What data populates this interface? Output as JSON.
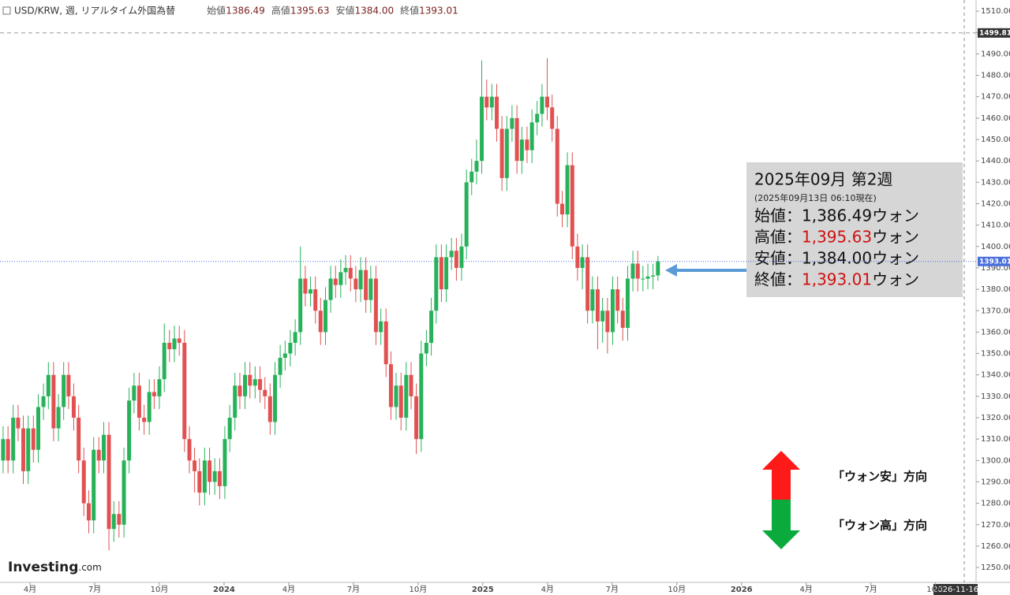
{
  "chart_data": {
    "type": "candlestick",
    "header": {
      "symbol": "USD/KRW, 週, リアルタイム外国為替",
      "fields": [
        {
          "label": "始値",
          "value": "1386.49"
        },
        {
          "label": "高値",
          "value": "1395.63"
        },
        {
          "label": "安値",
          "value": "1384.00"
        },
        {
          "label": "終値",
          "value": "1393.01"
        }
      ]
    },
    "up_color": "#27b25a",
    "down_color": "#e25151",
    "x": [
      2023.146,
      2023.165,
      2023.185,
      2023.204,
      2023.224,
      2023.243,
      2023.263,
      2023.282,
      2023.302,
      2023.321,
      2023.341,
      2023.36,
      2023.38,
      2023.399,
      2023.419,
      2023.438,
      2023.458,
      2023.477,
      2023.496,
      2023.516,
      2023.535,
      2023.555,
      2023.574,
      2023.594,
      2023.613,
      2023.633,
      2023.652,
      2023.672,
      2023.691,
      2023.711,
      2023.73,
      2023.75,
      2023.769,
      2023.789,
      2023.808,
      2023.827,
      2023.847,
      2023.866,
      2023.886,
      2023.905,
      2023.925,
      2023.944,
      2023.964,
      2023.983,
      2024.003,
      2024.022,
      2024.042,
      2024.061,
      2024.081,
      2024.1,
      2024.12,
      2024.139,
      2024.158,
      2024.178,
      2024.197,
      2024.217,
      2024.236,
      2024.256,
      2024.275,
      2024.295,
      2024.314,
      2024.334,
      2024.353,
      2024.373,
      2024.392,
      2024.412,
      2024.431,
      2024.451,
      2024.47,
      2024.489,
      2024.509,
      2024.528,
      2024.548,
      2024.567,
      2024.587,
      2024.606,
      2024.626,
      2024.645,
      2024.665,
      2024.684,
      2024.704,
      2024.723,
      2024.743,
      2024.762,
      2024.782,
      2024.801,
      2024.82,
      2024.84,
      2024.859,
      2024.879,
      2024.898,
      2024.918,
      2024.937,
      2024.957,
      2024.976,
      2024.996,
      2025.015,
      2025.035,
      2025.054,
      2025.074,
      2025.093,
      2025.113,
      2025.132,
      2025.151,
      2025.171,
      2025.19,
      2025.21,
      2025.229,
      2025.249,
      2025.268,
      2025.288,
      2025.307,
      2025.327,
      2025.346,
      2025.366,
      2025.385,
      2025.405,
      2025.424,
      2025.444,
      2025.463,
      2025.482,
      2025.502,
      2025.521,
      2025.541,
      2025.56,
      2025.58,
      2025.599,
      2025.619,
      2025.638,
      2025.658,
      2025.677
    ],
    "open": [
      1300,
      1310,
      1300,
      1320,
      1315,
      1295,
      1315,
      1305,
      1325,
      1330,
      1340,
      1315,
      1325,
      1340,
      1330,
      1320,
      1300,
      1280,
      1272,
      1305,
      1300,
      1312,
      1268,
      1275,
      1270,
      1300,
      1328,
      1335,
      1320,
      1318,
      1332,
      1330,
      1338,
      1355,
      1352,
      1357,
      1355,
      1310,
      1300,
      1295,
      1285,
      1300,
      1290,
      1295,
      1288,
      1310,
      1320,
      1335,
      1330,
      1340,
      1335,
      1338,
      1333,
      1330,
      1318,
      1340,
      1348,
      1350,
      1355,
      1360,
      1385,
      1378,
      1380,
      1370,
      1360,
      1375,
      1385,
      1382,
      1388,
      1390,
      1385,
      1380,
      1389,
      1375,
      1385,
      1360,
      1365,
      1345,
      1325,
      1335,
      1320,
      1340,
      1330,
      1310,
      1350,
      1355,
      1370,
      1395,
      1380,
      1395,
      1398,
      1390,
      1400,
      1430,
      1435,
      1440,
      1470,
      1465,
      1470,
      1455,
      1432,
      1455,
      1460,
      1440,
      1450,
      1445,
      1458,
      1462,
      1470,
      1465,
      1455,
      1420,
      1415,
      1438,
      1400,
      1390,
      1395,
      1370,
      1380,
      1365,
      1370,
      1360,
      1380,
      1370,
      1362,
      1385,
      1392,
      1385,
      1385,
      1386,
      1386.49
    ],
    "high": [
      1316,
      1316,
      1326,
      1326,
      1321,
      1321,
      1321,
      1331,
      1336,
      1346,
      1346,
      1331,
      1346,
      1346,
      1336,
      1326,
      1306,
      1286,
      1311,
      1311,
      1318,
      1318,
      1281,
      1281,
      1306,
      1334,
      1341,
      1341,
      1326,
      1338,
      1338,
      1344,
      1364,
      1361,
      1363,
      1363,
      1361,
      1316,
      1306,
      1301,
      1306,
      1306,
      1301,
      1301,
      1316,
      1326,
      1341,
      1341,
      1346,
      1346,
      1344,
      1344,
      1339,
      1336,
      1346,
      1354,
      1356,
      1361,
      1366,
      1400,
      1391,
      1386,
      1386,
      1376,
      1381,
      1391,
      1391,
      1394,
      1396,
      1396,
      1391,
      1395,
      1395,
      1391,
      1391,
      1371,
      1371,
      1351,
      1341,
      1341,
      1346,
      1346,
      1336,
      1356,
      1361,
      1376,
      1401,
      1401,
      1401,
      1404,
      1404,
      1406,
      1436,
      1441,
      1450,
      1487,
      1478,
      1476,
      1476,
      1461,
      1461,
      1466,
      1466,
      1456,
      1456,
      1464,
      1468,
      1476,
      1488,
      1471,
      1461,
      1426,
      1444,
      1444,
      1406,
      1401,
      1401,
      1386,
      1386,
      1376,
      1376,
      1386,
      1386,
      1376,
      1391,
      1398,
      1398,
      1391,
      1392,
      1392,
      1395.63
    ],
    "low": [
      1294,
      1294,
      1294,
      1309,
      1289,
      1289,
      1299,
      1299,
      1319,
      1324,
      1309,
      1309,
      1319,
      1324,
      1314,
      1294,
      1274,
      1266,
      1266,
      1294,
      1294,
      1258,
      1262,
      1264,
      1264,
      1294,
      1322,
      1314,
      1312,
      1312,
      1324,
      1324,
      1332,
      1346,
      1346,
      1349,
      1304,
      1294,
      1285,
      1279,
      1279,
      1284,
      1284,
      1282,
      1282,
      1304,
      1314,
      1324,
      1324,
      1329,
      1329,
      1327,
      1324,
      1312,
      1312,
      1334,
      1342,
      1344,
      1349,
      1354,
      1372,
      1372,
      1364,
      1354,
      1354,
      1369,
      1376,
      1376,
      1382,
      1379,
      1374,
      1374,
      1369,
      1369,
      1354,
      1354,
      1339,
      1319,
      1319,
      1314,
      1314,
      1324,
      1303,
      1304,
      1344,
      1349,
      1364,
      1374,
      1374,
      1389,
      1384,
      1384,
      1394,
      1424,
      1429,
      1434,
      1459,
      1459,
      1449,
      1426,
      1426,
      1449,
      1434,
      1434,
      1439,
      1439,
      1452,
      1456,
      1459,
      1449,
      1414,
      1409,
      1409,
      1394,
      1384,
      1380,
      1364,
      1364,
      1352,
      1355,
      1350,
      1354,
      1364,
      1356,
      1356,
      1379,
      1379,
      1379,
      1380,
      1380,
      1384.0
    ],
    "close": [
      1310,
      1300,
      1320,
      1315,
      1295,
      1315,
      1305,
      1325,
      1330,
      1340,
      1315,
      1325,
      1340,
      1330,
      1320,
      1300,
      1280,
      1272,
      1305,
      1300,
      1312,
      1268,
      1275,
      1270,
      1300,
      1328,
      1335,
      1320,
      1318,
      1332,
      1330,
      1338,
      1355,
      1352,
      1357,
      1355,
      1310,
      1300,
      1295,
      1285,
      1300,
      1290,
      1295,
      1288,
      1310,
      1320,
      1335,
      1330,
      1340,
      1335,
      1338,
      1333,
      1330,
      1318,
      1340,
      1348,
      1350,
      1355,
      1360,
      1385,
      1378,
      1380,
      1370,
      1360,
      1375,
      1385,
      1382,
      1388,
      1390,
      1385,
      1380,
      1389,
      1375,
      1385,
      1360,
      1365,
      1345,
      1325,
      1335,
      1320,
      1340,
      1330,
      1310,
      1350,
      1355,
      1370,
      1395,
      1380,
      1395,
      1398,
      1390,
      1400,
      1430,
      1435,
      1440,
      1470,
      1465,
      1470,
      1455,
      1432,
      1455,
      1460,
      1440,
      1450,
      1445,
      1458,
      1462,
      1470,
      1465,
      1455,
      1420,
      1415,
      1438,
      1400,
      1390,
      1395,
      1370,
      1380,
      1365,
      1370,
      1360,
      1380,
      1370,
      1362,
      1385,
      1392,
      1385,
      1385,
      1386,
      1386.49,
      1393.01
    ],
    "xlim": [
      2023.134,
      2026.87
    ],
    "xticks": [
      {
        "value": 2023.25,
        "label": "4月"
      },
      {
        "value": 2023.5,
        "label": "7月"
      },
      {
        "value": 2023.75,
        "label": "10月"
      },
      2024,
      {
        "value": 2024.25,
        "label": "4月"
      },
      {
        "value": 2024.5,
        "label": "7月"
      },
      {
        "value": 2024.75,
        "label": "10月"
      },
      2025,
      {
        "value": 2025.25,
        "label": "4月"
      },
      {
        "value": 2025.5,
        "label": "7月"
      },
      {
        "value": 2025.75,
        "label": "10月"
      },
      2026,
      {
        "value": 2026.25,
        "label": "4月"
      },
      {
        "value": 2026.5,
        "label": "7月"
      },
      {
        "value": 2026.75,
        "label": "10月"
      }
    ],
    "ylim": [
      1243.4,
      1515.2
    ],
    "yticks": [
      {
        "value": 1250,
        "label": "1250.00"
      },
      {
        "value": 1260,
        "label": "1260.00"
      },
      {
        "value": 1270,
        "label": "1270.00"
      },
      {
        "value": 1280,
        "label": "1280.00"
      },
      {
        "value": 1290,
        "label": "1290.00"
      },
      {
        "value": 1300,
        "label": "1300.00"
      },
      {
        "value": 1310,
        "label": "1310.00"
      },
      {
        "value": 1320,
        "label": "1320.00"
      },
      {
        "value": 1330,
        "label": "1330.00"
      },
      {
        "value": 1340,
        "label": "1340.00"
      },
      {
        "value": 1350,
        "label": "1350.00"
      },
      {
        "value": 1360,
        "label": "1360.00"
      },
      {
        "value": 1370,
        "label": "1370.00"
      },
      {
        "value": 1380,
        "label": "1380.00"
      },
      {
        "value": 1390,
        "label": "1390.00"
      },
      {
        "value": 1400,
        "label": "1400.00"
      },
      {
        "value": 1410,
        "label": "1410.00"
      },
      {
        "value": 1420,
        "label": "1420.00"
      },
      {
        "value": 1430,
        "label": "1430.00"
      },
      {
        "value": 1440,
        "label": "1440.00"
      },
      {
        "value": 1450,
        "label": "1450.00"
      },
      {
        "value": 1460,
        "label": "1460.00"
      },
      {
        "value": 1470,
        "label": "1470.00"
      },
      {
        "value": 1480,
        "label": "1480.00"
      },
      {
        "value": 1490,
        "label": "1490.00"
      },
      {
        "value": 1500,
        "label": "1500.00"
      },
      {
        "value": 1510,
        "label": "1510.00"
      }
    ],
    "reference_lines": [
      {
        "value": 1499.81,
        "color": "#999999",
        "style": "dashed"
      },
      {
        "value": 1393.01,
        "color": "#4a6fdc",
        "style": "dotted"
      }
    ],
    "cursor_label": "2026-11-16",
    "info_box": {
      "title": "2025年09月 第2週",
      "subtitle": "(2025年09月13日 06:10現在)",
      "rows": [
        {
          "label": "始値：",
          "value": "1,386.49",
          "unit": "ウォン",
          "color": "#111111"
        },
        {
          "label": "高値：",
          "value": "1,395.63",
          "unit": "ウォン",
          "color": "#d01010"
        },
        {
          "label": "安値：",
          "value": "1,384.00",
          "unit": "ウォン",
          "color": "#111111"
        },
        {
          "label": "終値：",
          "value": "1,393.01",
          "unit": "ウォン",
          "color": "#d01010"
        }
      ]
    },
    "legend_up": "「ウォン安」方向",
    "legend_down": "「ウォン高」方向",
    "logo": {
      "main": "Investing",
      "suffix": ".com"
    }
  }
}
